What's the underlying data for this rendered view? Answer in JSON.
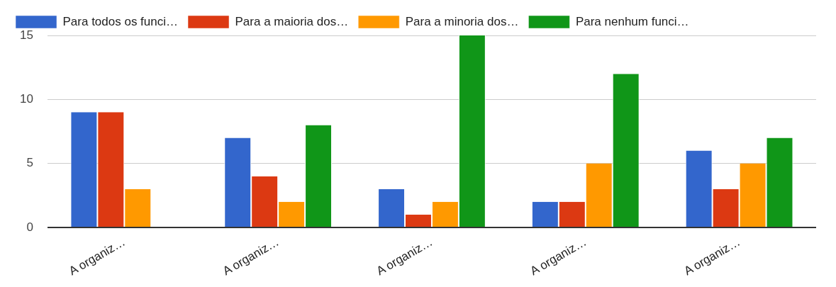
{
  "chart_data": {
    "type": "bar",
    "categories": [
      "A organiz…",
      "A organiz…",
      "A organiz…",
      "A organiz…",
      "A organiz…"
    ],
    "series": [
      {
        "name": "Para todos os funci…",
        "color": "#3366cc",
        "values": [
          9,
          7,
          3,
          2,
          6
        ]
      },
      {
        "name": "Para a maioria dos…",
        "color": "#dc3912",
        "values": [
          9,
          4,
          1,
          2,
          3
        ]
      },
      {
        "name": "Para a minoria dos…",
        "color": "#ff9900",
        "values": [
          3,
          2,
          2,
          5,
          5
        ]
      },
      {
        "name": "Para nenhum funci…",
        "color": "#109618",
        "values": [
          0,
          8,
          15,
          12,
          7
        ]
      }
    ],
    "ylim": [
      0,
      15
    ],
    "yticks": [
      0,
      5,
      10,
      15
    ],
    "grid": "y",
    "legend": "top"
  }
}
